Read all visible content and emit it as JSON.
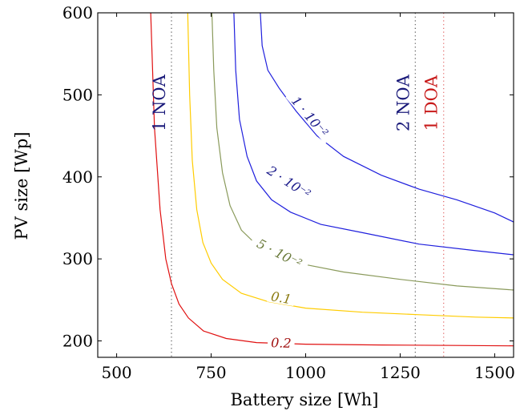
{
  "chart_data": {
    "type": "line",
    "xlabel": "Battery size [Wh]",
    "ylabel": "PV size [Wp]",
    "xlim": [
      450,
      1550
    ],
    "ylim": [
      180,
      600
    ],
    "xticks": [
      500,
      750,
      1000,
      1250,
      1500
    ],
    "yticks": [
      200,
      300,
      400,
      500,
      600
    ],
    "grid": false,
    "series": [
      {
        "name": "0.2",
        "color": "#e01010",
        "x": [
          590,
          600,
          615,
          630,
          645,
          665,
          690,
          730,
          790,
          870,
          1000,
          1200,
          1400,
          1550
        ],
        "y": [
          600,
          460,
          360,
          300,
          270,
          245,
          228,
          212,
          203,
          198,
          196,
          195,
          194.5,
          194
        ],
        "label_at": [
          935,
          197
        ]
      },
      {
        "name": "0.1",
        "color": "#ffcc00",
        "x": [
          688,
          693,
          700,
          712,
          728,
          750,
          780,
          830,
          900,
          1000,
          1150,
          1300,
          1450,
          1550
        ],
        "y": [
          600,
          500,
          420,
          360,
          320,
          295,
          275,
          258,
          248,
          240,
          235,
          232,
          229,
          228
        ],
        "label_at": [
          935,
          252
        ]
      },
      {
        "name": "5 · 10⁻²",
        "color": "#8a9a5b",
        "x": [
          752,
          757,
          765,
          780,
          800,
          830,
          875,
          930,
          1000,
          1100,
          1250,
          1400,
          1550
        ],
        "y": [
          600,
          530,
          460,
          405,
          365,
          335,
          315,
          302,
          293,
          284,
          275,
          267,
          262
        ],
        "label_at": [
          930,
          306
        ]
      },
      {
        "name": "2 · 10⁻²",
        "color": "#1f1fdd",
        "x": [
          810,
          815,
          825,
          845,
          870,
          910,
          960,
          1040,
          1150,
          1300,
          1450,
          1550
        ],
        "y": [
          600,
          530,
          470,
          425,
          395,
          372,
          357,
          342,
          332,
          318,
          310,
          305
        ],
        "label_at": [
          955,
          393
        ]
      },
      {
        "name": "1 · 10⁻²",
        "color": "#1f1fdd",
        "x": [
          880,
          885,
          900,
          930,
          975,
          1030,
          1100,
          1200,
          1300,
          1400,
          1500,
          1550
        ],
        "y": [
          600,
          560,
          530,
          508,
          480,
          450,
          425,
          402,
          385,
          372,
          356,
          345
        ],
        "label_at": [
          1010,
          473
        ]
      }
    ],
    "annotations": [
      {
        "label": "1 NOA",
        "x": 645,
        "color": "#1a1a7a",
        "style": "dotted",
        "line_color": "#555555",
        "label_y": 490
      },
      {
        "label": "2 NOA",
        "x": 1290,
        "color": "#1a1a7a",
        "style": "dotted",
        "line_color": "#555555",
        "label_y": 490
      },
      {
        "label": "1 DOA",
        "x": 1365,
        "color": "#c81a1a",
        "style": "dotted",
        "line_color": "#e06060",
        "label_y": 490
      }
    ]
  }
}
